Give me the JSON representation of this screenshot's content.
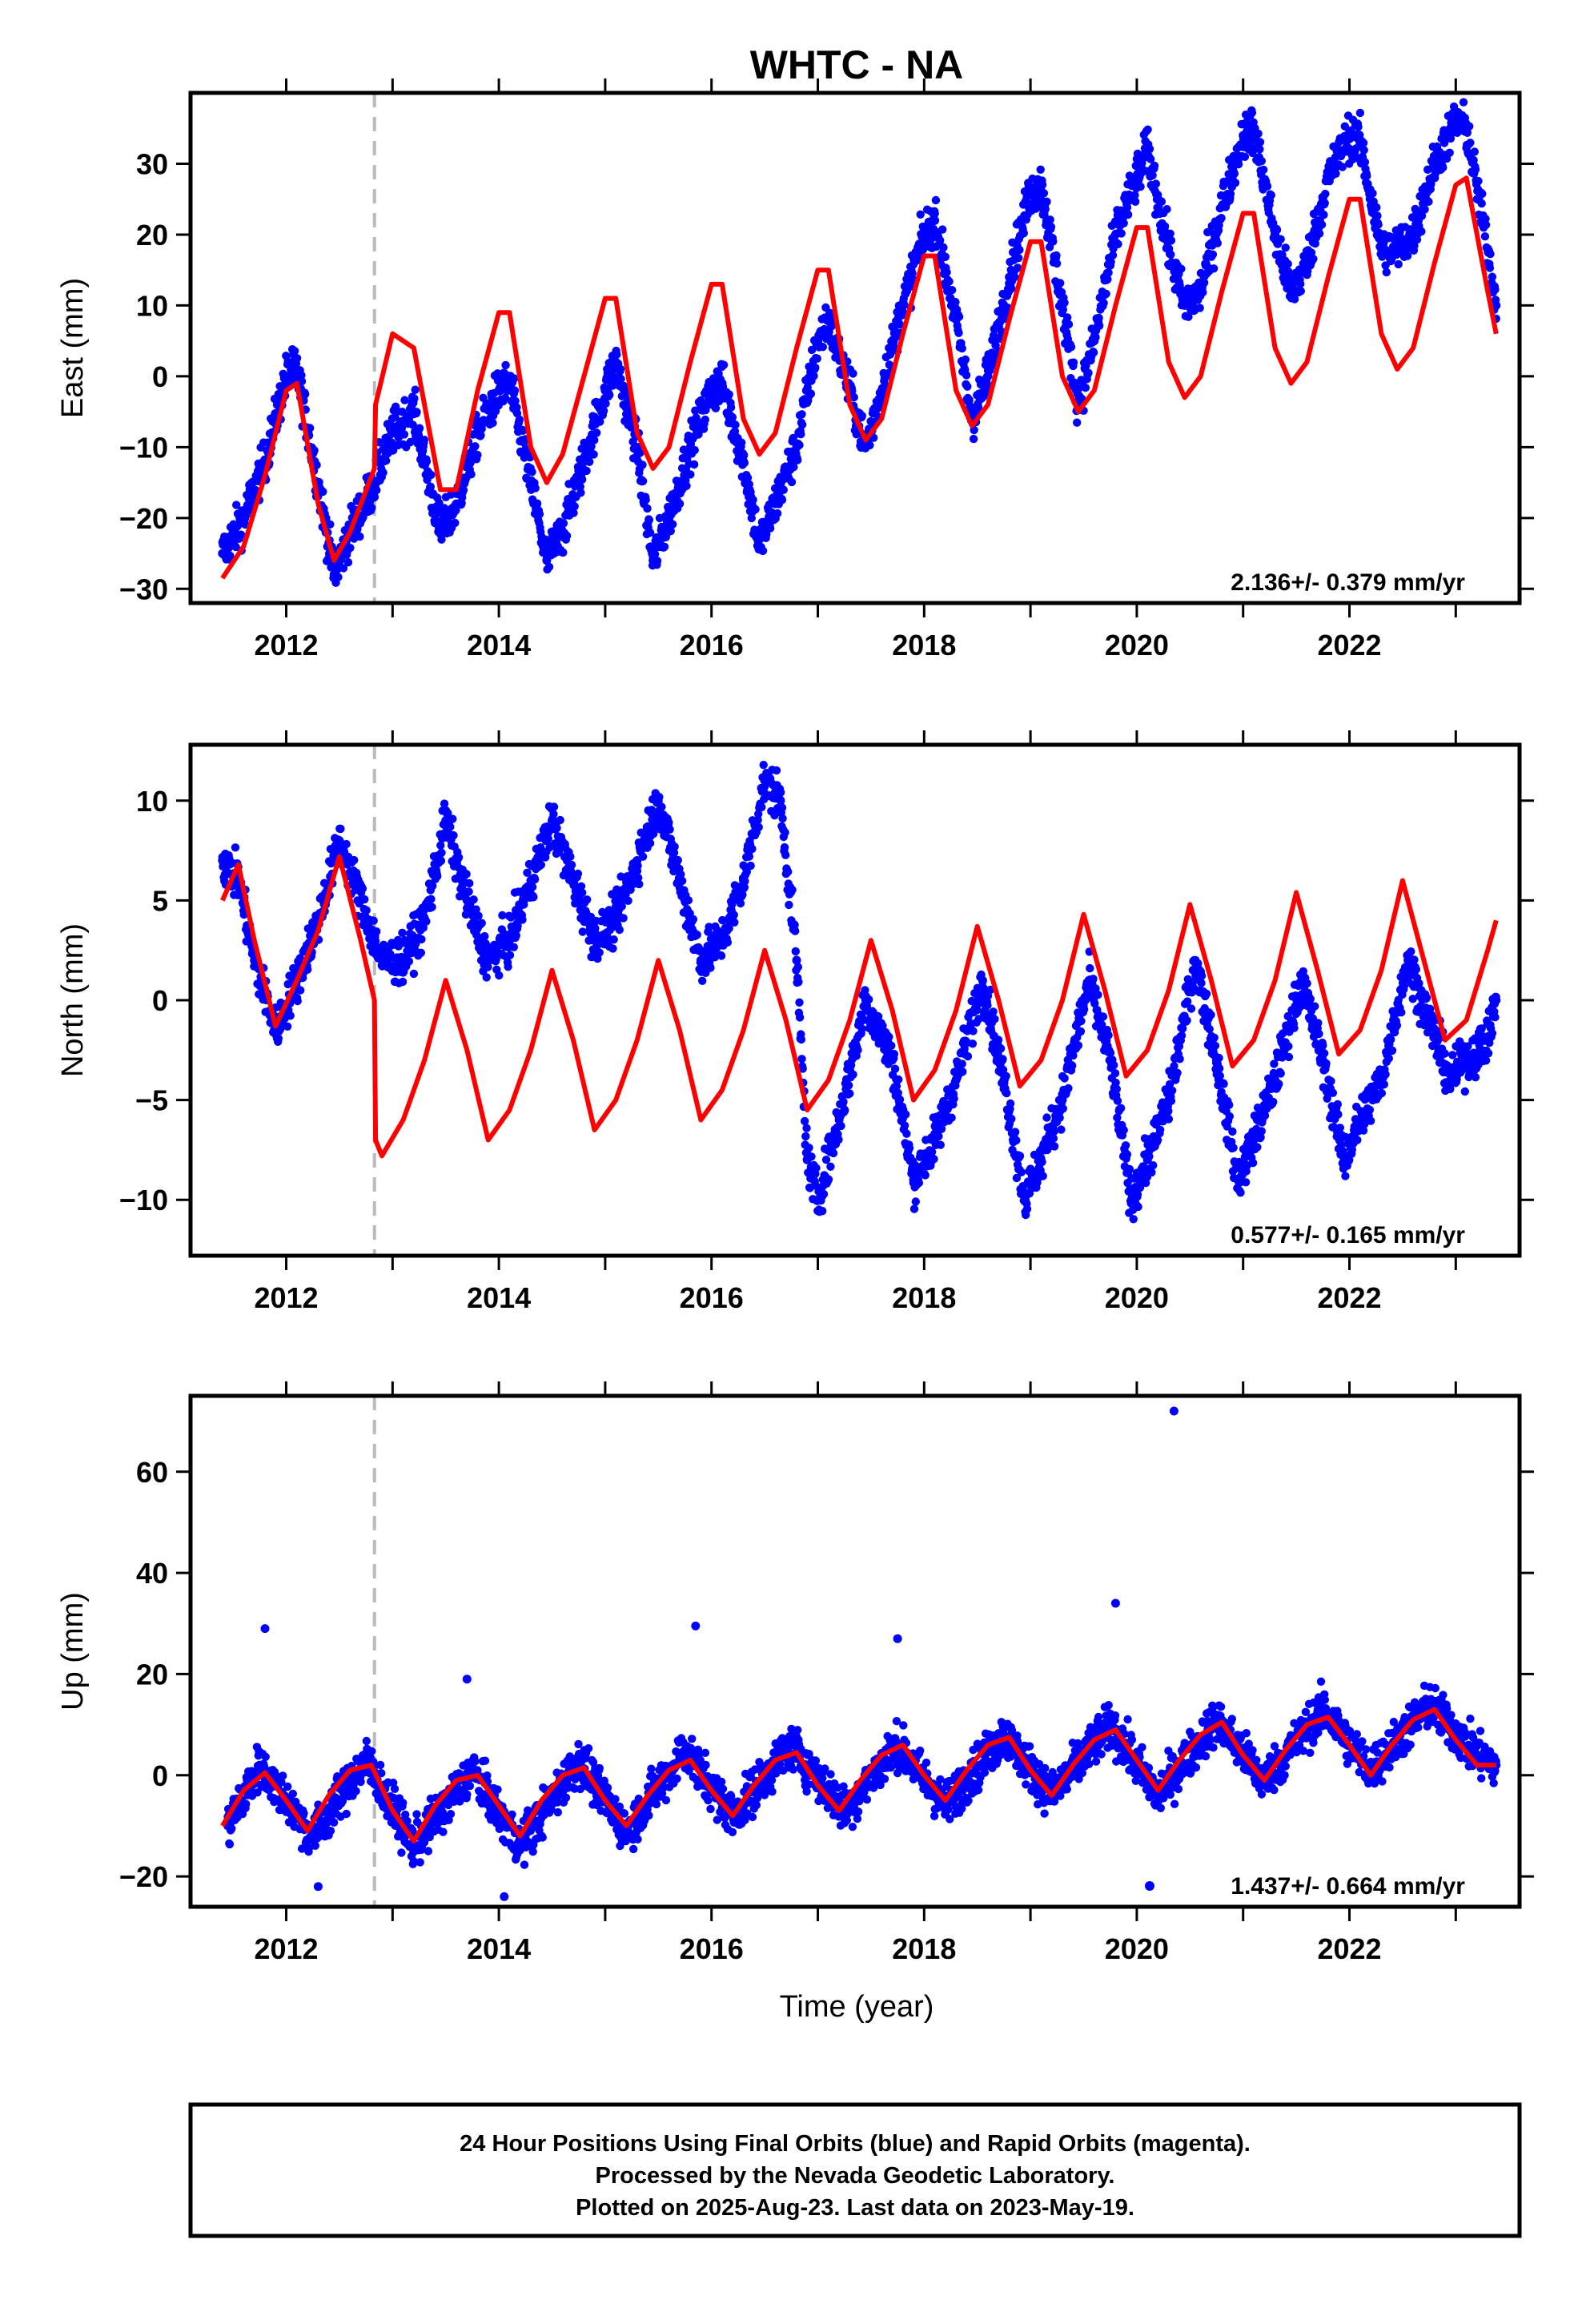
{
  "title": "WHTC - NA",
  "x_axis_label": "Time (year)",
  "footer": {
    "lines": [
      "24 Hour Positions Using Final Orbits (blue) and Rapid Orbits (magenta).",
      "Processed by the Nevada Geodetic Laboratory.",
      "Plotted on 2025-Aug-23. Last data on 2023-May-19."
    ]
  },
  "colors": {
    "final_orbits": "#0000ff",
    "model_fit": "#ff0000",
    "equipment_change_line": "#bbbbbb",
    "frame": "#000000"
  },
  "chart_data": [
    {
      "type": "scatter",
      "component": "east",
      "ylabel": "East (mm)",
      "xlim": [
        2011.1,
        2023.6
      ],
      "ylim": [
        -32,
        40
      ],
      "xticks": [
        2012,
        2014,
        2016,
        2018,
        2020,
        2022
      ],
      "yticks": [
        -30,
        -20,
        -10,
        0,
        10,
        20,
        30
      ],
      "rate_label": "2.136+/- 0.379 mm/yr",
      "rate_mm_per_yr": 2.136,
      "rate_sigma_mm_per_yr": 0.379,
      "equipment_change_year": 2012.83,
      "series": [
        {
          "role": "daily_positions",
          "x": [
            2011.4,
            2011.6,
            2011.8,
            2012.0,
            2012.1,
            2012.3,
            2012.45,
            2012.6,
            2012.8,
            2013.0,
            2013.2,
            2013.45,
            2013.6,
            2013.8,
            2014.0,
            2014.1,
            2014.3,
            2014.45,
            2014.6,
            2014.8,
            2015.0,
            2015.1,
            2015.3,
            2015.45,
            2015.6,
            2015.8,
            2016.0,
            2016.1,
            2016.3,
            2016.45,
            2016.6,
            2016.8,
            2017.0,
            2017.1,
            2017.3,
            2017.45,
            2017.6,
            2017.8,
            2018.0,
            2018.1,
            2018.3,
            2018.45,
            2018.6,
            2018.8,
            2019.0,
            2019.1,
            2019.3,
            2019.45,
            2019.6,
            2019.8,
            2020.0,
            2020.1,
            2020.3,
            2020.45,
            2020.6,
            2020.8,
            2021.0,
            2021.1,
            2021.3,
            2021.45,
            2021.6,
            2021.8,
            2022.0,
            2022.1,
            2022.3,
            2022.45,
            2022.6,
            2022.8,
            2023.0,
            2023.1,
            2023.3,
            2023.38
          ],
          "y": [
            -25,
            -20,
            -12,
            0,
            1,
            -15,
            -28,
            -22,
            -16,
            -8,
            -5,
            -22,
            -18,
            -8,
            -2,
            -1,
            -15,
            -26,
            -22,
            -12,
            -2,
            2,
            -10,
            -26,
            -20,
            -10,
            -2,
            -1,
            -12,
            -24,
            -18,
            -10,
            5,
            8,
            -2,
            -10,
            -2,
            10,
            20,
            22,
            8,
            -6,
            0,
            14,
            26,
            27,
            10,
            -4,
            5,
            20,
            28,
            32,
            18,
            10,
            12,
            24,
            34,
            35,
            20,
            12,
            16,
            28,
            34,
            33,
            18,
            18,
            20,
            30,
            36,
            35,
            18,
            10
          ]
        },
        {
          "role": "model_fit",
          "x": [
            2011.4,
            2011.6,
            2011.8,
            2012.0,
            2012.1,
            2012.3,
            2012.45,
            2012.6,
            2012.83,
            2012.84,
            2013.0,
            2013.2,
            2013.45,
            2013.6,
            2013.8,
            2014.0,
            2014.1,
            2014.3,
            2014.45,
            2014.6,
            2014.8,
            2015.0,
            2015.1,
            2015.3,
            2015.45,
            2015.6,
            2015.8,
            2016.0,
            2016.1,
            2016.3,
            2016.45,
            2016.6,
            2016.8,
            2017.0,
            2017.1,
            2017.3,
            2017.45,
            2017.6,
            2017.8,
            2018.0,
            2018.1,
            2018.3,
            2018.45,
            2018.6,
            2018.8,
            2019.0,
            2019.1,
            2019.3,
            2019.45,
            2019.6,
            2019.8,
            2020.0,
            2020.1,
            2020.3,
            2020.45,
            2020.6,
            2020.8,
            2021.0,
            2021.1,
            2021.3,
            2021.45,
            2021.6,
            2021.8,
            2022.0,
            2022.1,
            2022.3,
            2022.45,
            2022.6,
            2022.8,
            2023.0,
            2023.1,
            2023.3,
            2023.38
          ],
          "y": [
            -28.5,
            -24,
            -14,
            -2,
            -1,
            -18,
            -26,
            -22,
            -13,
            -4,
            6,
            4,
            -16,
            -16,
            -2,
            9,
            9,
            -10,
            -15,
            -11,
            0,
            11,
            11,
            -8,
            -13,
            -10,
            2,
            13,
            13,
            -6,
            -11,
            -8,
            4,
            15,
            15,
            -4,
            -9,
            -6,
            6,
            17,
            17,
            -2,
            -7,
            -4,
            8,
            19,
            19,
            0,
            -5,
            -2,
            10,
            21,
            21,
            2,
            -3,
            0,
            12,
            23,
            23,
            4,
            -1,
            2,
            14,
            25,
            25,
            6,
            1,
            4,
            16,
            27,
            28,
            12,
            6
          ]
        }
      ]
    },
    {
      "type": "scatter",
      "component": "north",
      "ylabel": "North (mm)",
      "xlim": [
        2011.1,
        2023.6
      ],
      "ylim": [
        -12.8,
        12.8
      ],
      "xticks": [
        2012,
        2014,
        2016,
        2018,
        2020,
        2022
      ],
      "yticks": [
        -10,
        -5,
        0,
        5,
        10
      ],
      "rate_label": "0.577+/- 0.165 mm/yr",
      "rate_mm_per_yr": 0.577,
      "rate_sigma_mm_per_yr": 0.165,
      "equipment_change_year": 2012.83,
      "series": [
        {
          "role": "daily_positions",
          "x": [
            2011.4,
            2011.55,
            2011.7,
            2011.9,
            2012.1,
            2012.3,
            2012.5,
            2012.7,
            2012.9,
            2013.1,
            2013.3,
            2013.5,
            2013.7,
            2013.9,
            2014.1,
            2014.3,
            2014.5,
            2014.7,
            2014.9,
            2015.1,
            2015.3,
            2015.5,
            2015.7,
            2015.9,
            2016.1,
            2016.3,
            2016.5,
            2016.65,
            2016.8,
            2016.9,
            2017.0,
            2017.2,
            2017.45,
            2017.7,
            2017.9,
            2018.1,
            2018.3,
            2018.55,
            2018.75,
            2018.95,
            2019.1,
            2019.3,
            2019.55,
            2019.75,
            2019.95,
            2020.1,
            2020.3,
            2020.55,
            2020.75,
            2020.95,
            2021.1,
            2021.3,
            2021.55,
            2021.75,
            2021.95,
            2022.1,
            2022.3,
            2022.55,
            2022.75,
            2022.95,
            2023.1,
            2023.3,
            2023.38
          ],
          "y": [
            7,
            6,
            2,
            -1.5,
            1,
            4,
            8,
            5,
            2,
            2,
            4,
            9,
            5,
            2,
            3,
            6,
            9,
            6,
            3,
            4,
            7,
            10,
            6,
            2,
            3,
            6,
            11,
            10,
            2,
            -8,
            -10,
            -6,
            0,
            -3,
            -9,
            -7,
            -4,
            1,
            -4,
            -10,
            -8,
            -5,
            1,
            -3,
            -10,
            -8,
            -5,
            2,
            -3,
            -9,
            -7,
            -4,
            1,
            -3,
            -8,
            -6,
            -4,
            2,
            -1,
            -4,
            -3,
            -2,
            0
          ]
        },
        {
          "role": "model_fit",
          "x": [
            2011.4,
            2011.55,
            2011.7,
            2011.9,
            2012.1,
            2012.3,
            2012.5,
            2012.7,
            2012.83,
            2012.84,
            2012.9,
            2013.1,
            2013.3,
            2013.5,
            2013.7,
            2013.9,
            2014.1,
            2014.3,
            2014.5,
            2014.7,
            2014.9,
            2015.1,
            2015.3,
            2015.5,
            2015.7,
            2015.9,
            2016.1,
            2016.3,
            2016.5,
            2016.7,
            2016.9,
            2017.1,
            2017.3,
            2017.5,
            2017.7,
            2017.9,
            2018.1,
            2018.3,
            2018.5,
            2018.7,
            2018.9,
            2019.1,
            2019.3,
            2019.5,
            2019.7,
            2019.9,
            2020.1,
            2020.3,
            2020.5,
            2020.7,
            2020.9,
            2021.1,
            2021.3,
            2021.5,
            2021.7,
            2021.9,
            2022.1,
            2022.3,
            2022.5,
            2022.7,
            2022.9,
            2023.1,
            2023.3,
            2023.38
          ],
          "y": [
            5,
            6.8,
            3,
            -1.3,
            1,
            3.5,
            7.2,
            3,
            0,
            -7,
            -7.8,
            -6,
            -3,
            1,
            -2.5,
            -7,
            -5.5,
            -2.5,
            1.5,
            -2,
            -6.5,
            -5,
            -2,
            2,
            -1.5,
            -6,
            -4.5,
            -1.5,
            2.5,
            -1,
            -5.5,
            -4,
            -1,
            3,
            -0.5,
            -5,
            -3.5,
            -0.5,
            3.7,
            0,
            -4.3,
            -3,
            0,
            4.3,
            0.5,
            -3.8,
            -2.5,
            0.5,
            4.8,
            1,
            -3.3,
            -2,
            1,
            5.4,
            1.5,
            -2.7,
            -1.5,
            1.5,
            6,
            2,
            -2,
            -1,
            2.5,
            4
          ]
        }
      ]
    },
    {
      "type": "scatter",
      "component": "up",
      "ylabel": "Up (mm)",
      "xlim": [
        2011.1,
        2023.6
      ],
      "ylim": [
        -26,
        75
      ],
      "xticks": [
        2012,
        2014,
        2016,
        2018,
        2020,
        2022
      ],
      "yticks": [
        -20,
        0,
        20,
        40,
        60
      ],
      "rate_label": "1.437+/- 0.664 mm/yr",
      "rate_mm_per_yr": 1.437,
      "rate_sigma_mm_per_yr": 0.664,
      "equipment_change_year": 2012.83,
      "series": [
        {
          "role": "daily_positions",
          "x": [
            2011.45,
            2011.75,
            2012.25,
            2012.75,
            2013.2,
            2013.75,
            2014.2,
            2014.75,
            2015.2,
            2015.75,
            2016.2,
            2016.75,
            2017.25,
            2017.75,
            2018.2,
            2018.75,
            2019.2,
            2019.75,
            2020.2,
            2020.75,
            2021.2,
            2021.75,
            2022.2,
            2022.75,
            2023.2,
            2023.38,
            2011.8,
            2015.85,
            2017.75,
            2019.8,
            2020.35,
            2013.7,
            2014.05,
            2012.3
          ],
          "y": [
            -10,
            2,
            -12,
            3,
            -14,
            1,
            -14,
            3,
            -11,
            5,
            -8,
            6,
            -7,
            6,
            -6,
            8,
            -4,
            10,
            -4,
            11,
            -1,
            13,
            1,
            14,
            4,
            2,
            29,
            29.5,
            27,
            34,
            72,
            19,
            -24,
            -22
          ]
        },
        {
          "role": "model_fit",
          "x": [
            2011.4,
            2011.6,
            2011.8,
            2012.0,
            2012.2,
            2012.4,
            2012.6,
            2012.8,
            2013.0,
            2013.2,
            2013.4,
            2013.6,
            2013.8,
            2014.0,
            2014.2,
            2014.4,
            2014.6,
            2014.8,
            2015.0,
            2015.2,
            2015.4,
            2015.6,
            2015.8,
            2016.0,
            2016.2,
            2016.4,
            2016.6,
            2016.8,
            2017.0,
            2017.2,
            2017.4,
            2017.6,
            2017.8,
            2018.0,
            2018.2,
            2018.4,
            2018.6,
            2018.8,
            2019.0,
            2019.2,
            2019.4,
            2019.6,
            2019.8,
            2020.0,
            2020.2,
            2020.4,
            2020.6,
            2020.8,
            2021.0,
            2021.2,
            2021.4,
            2021.6,
            2021.8,
            2022.0,
            2022.2,
            2022.4,
            2022.6,
            2022.8,
            2023.0,
            2023.2,
            2023.38
          ],
          "y": [
            -10,
            -3,
            0.5,
            -5,
            -11,
            -4,
            1,
            2,
            -7,
            -13,
            -6,
            -1,
            0,
            -6,
            -12,
            -5,
            0,
            1.5,
            -5,
            -10,
            -4,
            1,
            3,
            -3,
            -8,
            -2,
            3,
            4.5,
            -2,
            -7,
            -1,
            4,
            6,
            0,
            -5,
            1,
            6,
            7.5,
            1,
            -4,
            2,
            7,
            9,
            3,
            -3,
            3,
            8,
            10.5,
            4,
            -1,
            5,
            10,
            11.5,
            6,
            0,
            6,
            11,
            13,
            7,
            2,
            2
          ]
        }
      ]
    }
  ]
}
